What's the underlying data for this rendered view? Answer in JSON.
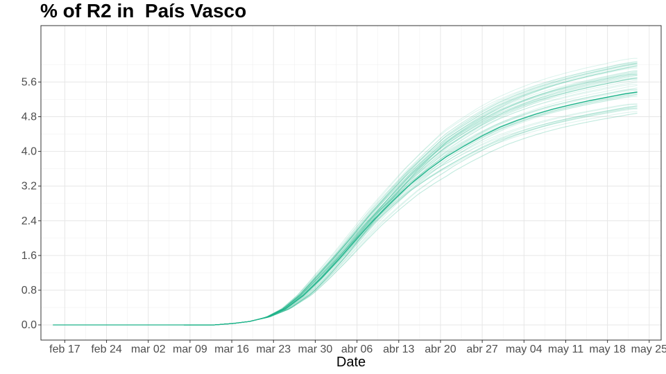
{
  "chart_data": {
    "type": "line",
    "title": "% of R2 in  País Vasco",
    "xlabel": "Date",
    "ylabel": "",
    "x_ticks": [
      "feb 17",
      "feb 24",
      "mar 02",
      "mar 09",
      "mar 16",
      "mar 23",
      "mar 30",
      "abr 06",
      "abr 13",
      "abr 20",
      "abr 27",
      "may 04",
      "may 11",
      "may 18",
      "may 25"
    ],
    "y_ticks": [
      0.0,
      0.8,
      1.6,
      2.4,
      3.2,
      4.0,
      4.8,
      5.6
    ],
    "y_tick_labels": [
      "0.0",
      "0.8",
      "1.6",
      "2.4",
      "3.2",
      "4.0",
      "4.8",
      "5.6"
    ],
    "x_range": [
      "2020-02-13",
      "2020-05-27"
    ],
    "ylim": [
      -0.35,
      6.9
    ],
    "grid": true,
    "legend": "none",
    "line_color": "#1db38a",
    "central_series": {
      "x": [
        "2020-02-15",
        "2020-03-13",
        "2020-03-16",
        "2020-03-19",
        "2020-03-22",
        "2020-03-25",
        "2020-03-28",
        "2020-03-31",
        "2020-04-03",
        "2020-04-06",
        "2020-04-09",
        "2020-04-12",
        "2020-04-15",
        "2020-04-18",
        "2020-04-21",
        "2020-04-24",
        "2020-04-27",
        "2020-04-30",
        "2020-05-03",
        "2020-05-06",
        "2020-05-09",
        "2020-05-12",
        "2020-05-15",
        "2020-05-18",
        "2020-05-21",
        "2020-05-23"
      ],
      "y": [
        0.0,
        0.0,
        0.03,
        0.08,
        0.18,
        0.37,
        0.68,
        1.08,
        1.52,
        1.99,
        2.45,
        2.86,
        3.25,
        3.58,
        3.88,
        4.13,
        4.36,
        4.56,
        4.72,
        4.86,
        4.98,
        5.08,
        5.17,
        5.25,
        5.33,
        5.37
      ]
    },
    "ensemble": {
      "count": 60,
      "final_value_range": [
        4.9,
        6.15
      ]
    }
  }
}
